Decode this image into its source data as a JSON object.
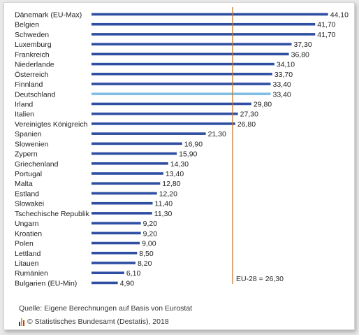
{
  "chart_data": {
    "type": "bar",
    "orientation": "horizontal",
    "categories": [
      "Dänemark (EU-Max)",
      "Belgien",
      "Schweden",
      "Luxemburg",
      "Frankreich",
      "Niederlande",
      "Österreich",
      "Finnland",
      "Deutschland",
      "Irland",
      "Italien",
      "Vereinigtes Königreich",
      "Spanien",
      "Slowenien",
      "Zypern",
      "Griechenland",
      "Portugal",
      "Malta",
      "Estland",
      "Slowakei",
      "Tschechische Republik",
      "Ungarn",
      "Kroatien",
      "Polen",
      "Lettland",
      "Litauen",
      "Rumänien",
      "Bulgarien (EU-Min)"
    ],
    "values": [
      44.1,
      41.7,
      41.7,
      37.3,
      36.8,
      34.1,
      33.7,
      33.4,
      33.4,
      29.8,
      27.3,
      26.8,
      21.3,
      16.9,
      15.9,
      14.3,
      13.4,
      12.8,
      12.2,
      11.4,
      11.3,
      9.2,
      9.2,
      9.0,
      8.5,
      8.2,
      6.1,
      4.9
    ],
    "value_labels": [
      "44,10",
      "41,70",
      "41,70",
      "37,30",
      "36,80",
      "34,10",
      "33,70",
      "33,40",
      "33,40",
      "29,80",
      "27,30",
      "26,80",
      "21,30",
      "16,90",
      "15,90",
      "14,30",
      "13,40",
      "12,80",
      "12,20",
      "11,40",
      "11,30",
      "9,20",
      "9,20",
      "9,00",
      "8,50",
      "8,20",
      "6,10",
      "4,90"
    ],
    "highlight_category": "Deutschland",
    "reference_line": {
      "value": 26.3,
      "label": "EU-28 = 26,30"
    },
    "colors": {
      "bar": "#2f4fa3",
      "highlight": "#7fbfe3",
      "reference_line": "#c8782e"
    },
    "grid": false,
    "legend": "none",
    "title": "",
    "xlabel": "",
    "ylabel": ""
  },
  "footer": {
    "source": "Quelle: Eigene Berechnungen auf Basis von Eurostat",
    "copyright": "© Statistisches Bundesamt (Destatis), 2018",
    "logo_icon": "destatis-logo-icon",
    "logo_colors": [
      "#3a3a3a",
      "#e3a21a",
      "#c0392b"
    ]
  }
}
